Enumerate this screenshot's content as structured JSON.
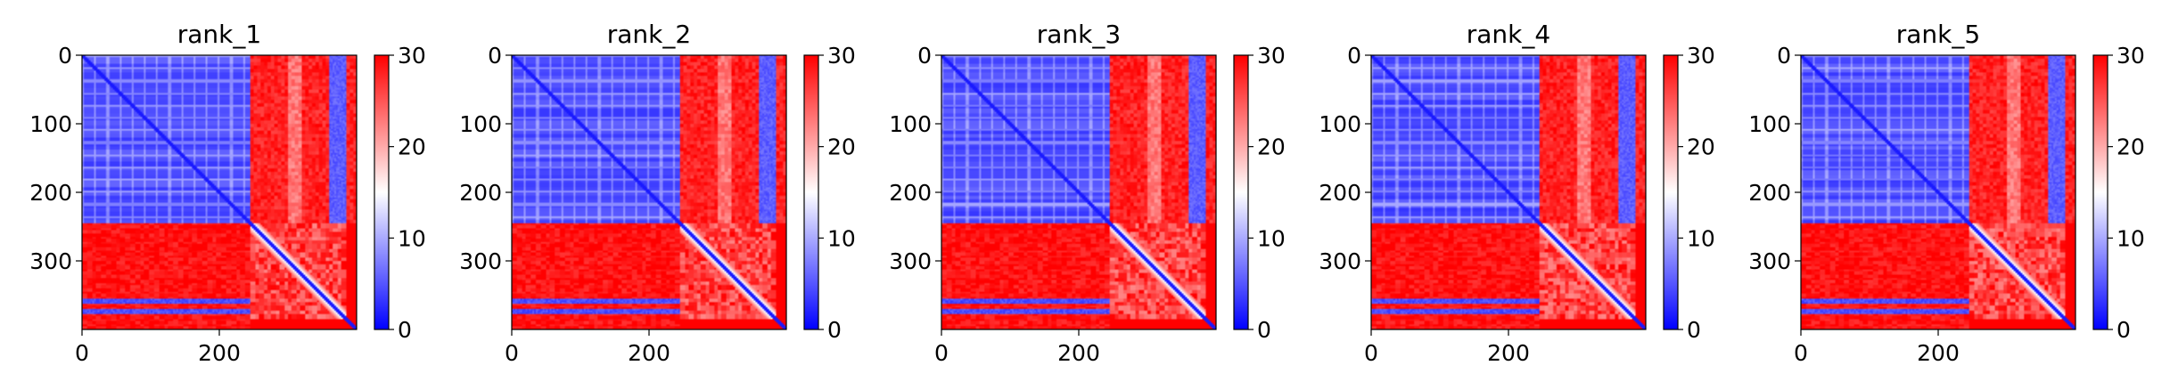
{
  "chart_data": [
    {
      "type": "heatmap",
      "title": "rank_1",
      "n": 400,
      "x_ticks": [
        0,
        200
      ],
      "y_ticks": [
        0,
        100,
        200,
        300
      ],
      "colorbar": {
        "min": 0,
        "max": 30,
        "ticks": [
          0,
          10,
          20,
          30
        ],
        "cmap": "bwr"
      },
      "structure": {
        "low_block_end": 245,
        "right_low_band": [
          360,
          385
        ],
        "bottom_low_bands": [
          [
            355,
            362
          ],
          [
            370,
            378
          ]
        ],
        "diagonal": "low"
      }
    },
    {
      "type": "heatmap",
      "title": "rank_2",
      "n": 400,
      "x_ticks": [
        0,
        200
      ],
      "y_ticks": [
        0,
        100,
        200,
        300
      ],
      "colorbar": {
        "min": 0,
        "max": 30,
        "ticks": [
          0,
          10,
          20,
          30
        ],
        "cmap": "bwr"
      },
      "structure": {
        "low_block_end": 245,
        "right_low_band": [
          360,
          385
        ],
        "bottom_low_bands": [
          [
            355,
            362
          ],
          [
            370,
            378
          ]
        ],
        "diagonal": "low"
      }
    },
    {
      "type": "heatmap",
      "title": "rank_3",
      "n": 400,
      "x_ticks": [
        0,
        200
      ],
      "y_ticks": [
        0,
        100,
        200,
        300
      ],
      "colorbar": {
        "min": 0,
        "max": 30,
        "ticks": [
          0,
          10,
          20,
          30
        ],
        "cmap": "bwr"
      },
      "structure": {
        "low_block_end": 245,
        "right_low_band": [
          360,
          385
        ],
        "bottom_low_bands": [
          [
            355,
            362
          ],
          [
            370,
            378
          ]
        ],
        "diagonal": "low"
      }
    },
    {
      "type": "heatmap",
      "title": "rank_4",
      "n": 400,
      "x_ticks": [
        0,
        200
      ],
      "y_ticks": [
        0,
        100,
        200,
        300
      ],
      "colorbar": {
        "min": 0,
        "max": 30,
        "ticks": [
          0,
          10,
          20,
          30
        ],
        "cmap": "bwr"
      },
      "structure": {
        "low_block_end": 245,
        "right_low_band": [
          360,
          385
        ],
        "bottom_low_bands": [
          [
            355,
            362
          ],
          [
            370,
            378
          ]
        ],
        "diagonal": "low"
      }
    },
    {
      "type": "heatmap",
      "title": "rank_5",
      "n": 400,
      "x_ticks": [
        0,
        200
      ],
      "y_ticks": [
        0,
        100,
        200,
        300
      ],
      "colorbar": {
        "min": 0,
        "max": 30,
        "ticks": [
          0,
          10,
          20,
          30
        ],
        "cmap": "bwr"
      },
      "structure": {
        "low_block_end": 245,
        "right_low_band": [
          360,
          385
        ],
        "bottom_low_bands": [
          [
            355,
            362
          ],
          [
            370,
            378
          ]
        ],
        "diagonal": "low"
      }
    }
  ]
}
